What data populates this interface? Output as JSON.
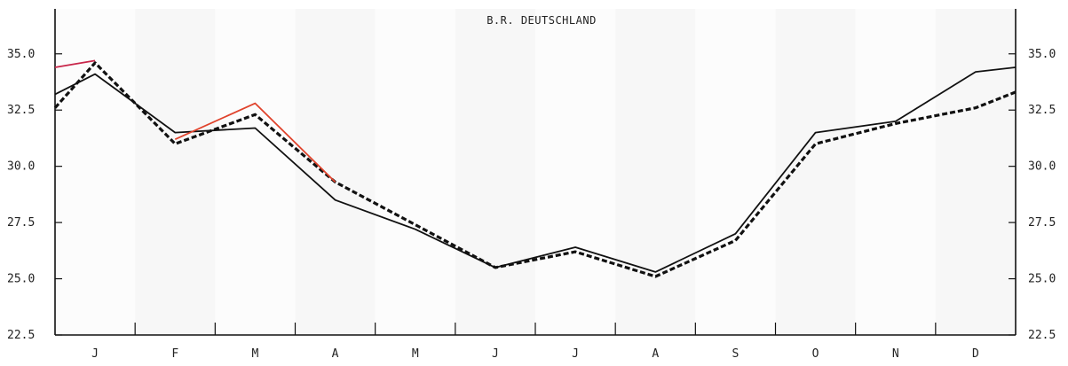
{
  "chart_data": {
    "type": "line",
    "title": "B.R. DEUTSCHLAND",
    "xlabel": "",
    "ylabel": "",
    "categories": [
      "J",
      "F",
      "M",
      "A",
      "M",
      "J",
      "J",
      "A",
      "S",
      "O",
      "N",
      "D"
    ],
    "ylim": [
      22.5,
      37.0
    ],
    "yticks": [
      "22.5",
      "25.0",
      "27.5",
      "30.0",
      "32.5",
      "35.0"
    ],
    "ytick_values": [
      22.5,
      25.0,
      27.5,
      30.0,
      32.5,
      35.0
    ],
    "grid": false,
    "legend": "none",
    "series": [
      {
        "style": "solid",
        "color": "#111111",
        "x": [
          "J-start",
          "J",
          "F",
          "M",
          "A",
          "M",
          "J",
          "J",
          "A",
          "S",
          "O",
          "N",
          "D",
          "D-end"
        ],
        "values": [
          33.2,
          34.1,
          31.5,
          31.7,
          28.5,
          27.2,
          25.5,
          26.4,
          25.3,
          27.0,
          31.5,
          32.0,
          34.2,
          34.4
        ]
      },
      {
        "style": "dashed",
        "color": "#111111",
        "x": [
          "J-start",
          "J",
          "F",
          "M",
          "A",
          "M",
          "J",
          "J",
          "A",
          "S",
          "O",
          "N",
          "D",
          "D-end"
        ],
        "values": [
          32.6,
          34.6,
          31.0,
          32.3,
          29.3,
          27.4,
          25.5,
          26.2,
          25.1,
          26.7,
          31.0,
          31.9,
          32.6,
          33.3
        ]
      },
      {
        "style": "solid",
        "color": "#c8264a",
        "x": [
          "J-start",
          "J"
        ],
        "values": [
          34.4,
          34.7
        ]
      },
      {
        "style": "solid",
        "color": "#e0432c",
        "x": [
          "F",
          "M",
          "A"
        ],
        "values": [
          31.2,
          32.8,
          29.3
        ]
      }
    ]
  }
}
